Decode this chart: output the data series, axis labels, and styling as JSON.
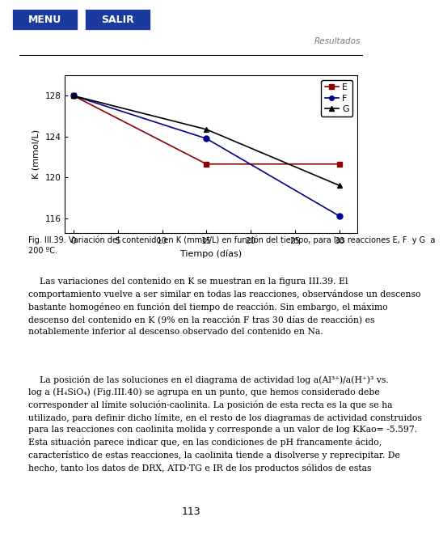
{
  "title": "",
  "xlabel": "Tiempo (días)",
  "ylabel": "K (mmol/L)",
  "xlim": [
    -1,
    32
  ],
  "ylim": [
    114.5,
    130
  ],
  "xticks": [
    0,
    5,
    10,
    15,
    20,
    25,
    30
  ],
  "yticks": [
    116,
    120,
    124,
    128
  ],
  "series": {
    "E": {
      "x": [
        0,
        15,
        30
      ],
      "y": [
        128,
        121.3,
        121.3
      ],
      "color": "#8B0000",
      "marker": "s",
      "markersize": 5,
      "linewidth": 1.2
    },
    "F": {
      "x": [
        0,
        15,
        30
      ],
      "y": [
        128,
        123.8,
        116.2
      ],
      "color": "#00008B",
      "marker": "o",
      "markersize": 5,
      "linewidth": 1.2
    },
    "G": {
      "x": [
        0,
        15,
        30
      ],
      "y": [
        128,
        124.7,
        119.2
      ],
      "color": "#000000",
      "marker": "^",
      "markersize": 5,
      "linewidth": 1.2
    }
  },
  "legend_labels": [
    "E",
    "F",
    "G"
  ],
  "legend_colors": [
    "#8B0000",
    "#00008B",
    "#000000"
  ],
  "legend_markers": [
    "s",
    "o",
    "^"
  ],
  "caption": "Fig. III.39. Variación del contenido en K (mmol/L) en función del tiempo, para las reacciones E, F  y G  a\n200 ºC.",
  "caption_fontsize": 7.0,
  "header_text": "Resultados",
  "background_color": "#ffffff",
  "plot_bg_color": "#ffffff",
  "btn_color": "#1a3a9e",
  "body1": "    Las variaciones del contenido en K se muestran en la figura III.39. El comportamiento vuelve a ser similar en todas las reacciones, observándose un descenso bastante homogéneo en función del tiempo de reacción. Sin embargo, el máximo descenso del contenido en K (9% en la reacción F tras 30 días de reacción) es notablemente inferior al descenso observado del contenido en Na.",
  "body2": "    La posición de las soluciones en el diagrama de actividad log a(Al3+)/a(H+)3 vs. log a (H4SiO4) (Fig.III.40) se agrupa en un punto, que hemos considerado debe corresponder al límite solución-caolinita. La posición de esta recta es la que se ha utilizado, para definir dicho límite, en el resto de los diagramas de actividad construidos para las reacciones con caolinita molida y corresponde a un valor de log KKao= -5.597. Esta situación parece indicar que, en las condiciones de pH francamente ácido, característico de estas reacciones, la caolinita tiende a disolverse y reprecipitar. De hecho, tanto los datos de DRX, ATD-TG e IR de los productos sólidos de estas",
  "page_number": "113"
}
